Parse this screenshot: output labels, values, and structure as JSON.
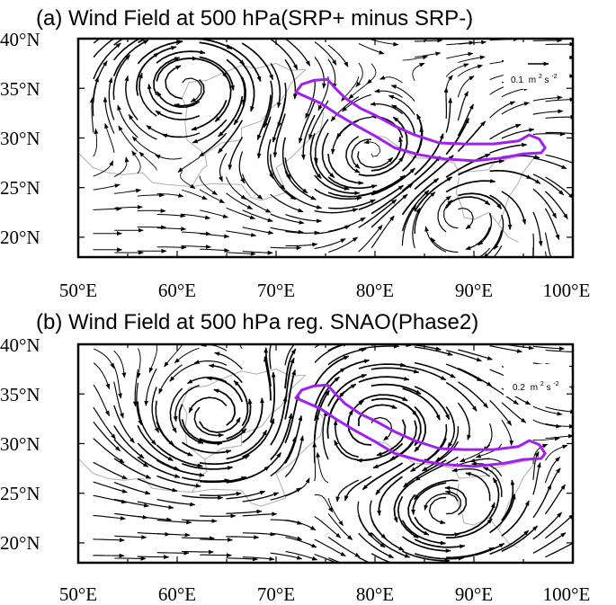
{
  "panels": [
    {
      "id": "a",
      "title": "(a) Wind Field at 500 hPa(SRP+ minus SRP-)",
      "reference_vector": {
        "value": "0.1",
        "unit_base": "m",
        "unit_exp1": "2",
        "unit_mid": "s",
        "unit_exp2": "-2"
      },
      "lon_ticks": [
        "50°E",
        "60°E",
        "70°E",
        "80°E",
        "90°E",
        "100°E"
      ],
      "lat_ticks": [
        "20°N",
        "25°N",
        "30°N",
        "35°N",
        "40°N"
      ],
      "lon_range": [
        50,
        100
      ],
      "lat_range": [
        18,
        40
      ],
      "circulation_centers": [
        {
          "lon": 61,
          "lat": 35.5,
          "sense": "anticyclonic",
          "strength": 1.0
        },
        {
          "lon": 80,
          "lat": 28,
          "sense": "cyclonic",
          "strength": 0.9
        },
        {
          "lon": 88,
          "lat": 23,
          "sense": "anticyclonic",
          "strength": 0.7
        }
      ],
      "background_flow": {
        "u": 0.35,
        "v": 0.0
      }
    },
    {
      "id": "b",
      "title": "(b) Wind Field at 500 hPa reg. SNAO(Phase2)",
      "reference_vector": {
        "value": "0.2",
        "unit_base": "m",
        "unit_exp1": "2",
        "unit_mid": "s",
        "unit_exp2": "-2"
      },
      "lon_ticks": [
        "50°E",
        "60°E",
        "70°E",
        "80°E",
        "90°E",
        "100°E"
      ],
      "lat_ticks": [
        "20°N",
        "25°N",
        "30°N",
        "35°N",
        "40°N"
      ],
      "lon_range": [
        50,
        100
      ],
      "lat_range": [
        18,
        40
      ],
      "circulation_centers": [
        {
          "lon": 64,
          "lat": 32.5,
          "sense": "cyclonic",
          "strength": 1.0
        },
        {
          "lon": 80,
          "lat": 32,
          "sense": "anticyclonic",
          "strength": 0.9
        },
        {
          "lon": 87,
          "lat": 23.5,
          "sense": "cyclonic",
          "strength": 0.8
        }
      ],
      "background_flow": {
        "u": 0.45,
        "v": 0.0
      }
    }
  ],
  "colors": {
    "outline": "#a020f0",
    "borders": "#b4b4b4",
    "arrows": "#000000",
    "frame": "#000000"
  },
  "outline_region": {
    "name": "Tibetan Plateau",
    "lonlat": [
      [
        72.0,
        34.6
      ],
      [
        72.6,
        35.4
      ],
      [
        73.8,
        35.8
      ],
      [
        75.2,
        35.9
      ],
      [
        76.0,
        35.0
      ],
      [
        77.0,
        34.0
      ],
      [
        78.5,
        33.0
      ],
      [
        80.0,
        32.3
      ],
      [
        82.0,
        31.2
      ],
      [
        84.0,
        30.3
      ],
      [
        86.5,
        29.5
      ],
      [
        89.0,
        29.4
      ],
      [
        92.0,
        29.4
      ],
      [
        94.5,
        29.7
      ],
      [
        95.6,
        30.3
      ],
      [
        96.6,
        29.9
      ],
      [
        97.2,
        29.0
      ],
      [
        96.8,
        28.5
      ],
      [
        95.0,
        28.4
      ],
      [
        93.0,
        28.0
      ],
      [
        90.0,
        27.7
      ],
      [
        87.0,
        27.9
      ],
      [
        84.5,
        28.3
      ],
      [
        82.0,
        29.0
      ],
      [
        80.0,
        30.2
      ],
      [
        78.0,
        31.3
      ],
      [
        76.0,
        32.5
      ],
      [
        74.5,
        33.5
      ],
      [
        72.0,
        34.6
      ]
    ]
  },
  "country_borders": [
    [
      [
        50.0,
        28.5
      ],
      [
        51.5,
        27.0
      ],
      [
        53.0,
        26.5
      ],
      [
        54.5,
        26.3
      ],
      [
        56.5,
        26.5
      ],
      [
        57.5,
        25.5
      ],
      [
        59.0,
        25.3
      ],
      [
        61.5,
        25.1
      ]
    ],
    [
      [
        61.5,
        25.1
      ],
      [
        62.5,
        26.8
      ],
      [
        63.0,
        27.2
      ],
      [
        62.8,
        28.4
      ],
      [
        61.0,
        29.8
      ],
      [
        60.8,
        31.5
      ],
      [
        61.0,
        33.0
      ],
      [
        60.5,
        34.0
      ],
      [
        61.2,
        35.6
      ]
    ],
    [
      [
        61.2,
        35.6
      ],
      [
        63.0,
        35.8
      ],
      [
        64.5,
        36.5
      ],
      [
        66.5,
        37.3
      ],
      [
        68.0,
        37.0
      ],
      [
        70.0,
        37.5
      ],
      [
        71.5,
        36.8
      ],
      [
        73.0,
        36.9
      ]
    ],
    [
      [
        61.5,
        25.1
      ],
      [
        63.5,
        25.4
      ],
      [
        66.5,
        25.3
      ],
      [
        67.5,
        24.0
      ],
      [
        68.5,
        23.7
      ],
      [
        70.0,
        24.2
      ],
      [
        71.0,
        24.5
      ]
    ],
    [
      [
        62.8,
        28.4
      ],
      [
        64.5,
        29.5
      ],
      [
        66.5,
        29.8
      ],
      [
        66.5,
        31.0
      ],
      [
        68.5,
        31.7
      ],
      [
        69.5,
        33.0
      ],
      [
        70.5,
        33.8
      ],
      [
        71.0,
        34.5
      ],
      [
        71.5,
        35.5
      ],
      [
        73.0,
        36.9
      ]
    ],
    [
      [
        71.0,
        24.5
      ],
      [
        70.5,
        25.8
      ],
      [
        70.0,
        27.0
      ],
      [
        71.5,
        28.0
      ],
      [
        73.0,
        29.5
      ],
      [
        74.5,
        30.8
      ],
      [
        74.8,
        32.5
      ],
      [
        73.8,
        34.0
      ]
    ],
    [
      [
        80.0,
        30.2
      ],
      [
        81.0,
        30.1
      ],
      [
        82.5,
        29.0
      ],
      [
        84.0,
        28.0
      ],
      [
        86.0,
        27.9
      ],
      [
        88.0,
        27.5
      ]
    ],
    [
      [
        88.0,
        27.5
      ],
      [
        88.5,
        26.5
      ],
      [
        89.5,
        26.6
      ],
      [
        91.5,
        26.8
      ],
      [
        92.0,
        27.5
      ],
      [
        93.5,
        27.9
      ],
      [
        95.0,
        28.2
      ],
      [
        96.5,
        28.5
      ]
    ],
    [
      [
        88.5,
        26.0
      ],
      [
        88.2,
        24.5
      ],
      [
        88.8,
        23.0
      ],
      [
        89.0,
        22.0
      ],
      [
        90.0,
        21.8
      ],
      [
        91.5,
        22.5
      ],
      [
        92.5,
        21.3
      ]
    ],
    [
      [
        92.5,
        21.3
      ],
      [
        93.0,
        22.5
      ],
      [
        93.5,
        24.0
      ],
      [
        94.5,
        25.5
      ],
      [
        95.0,
        26.6
      ],
      [
        96.5,
        28.5
      ]
    ],
    [
      [
        92.5,
        21.3
      ],
      [
        93.5,
        20.0
      ],
      [
        94.5,
        19.5
      ]
    ]
  ]
}
